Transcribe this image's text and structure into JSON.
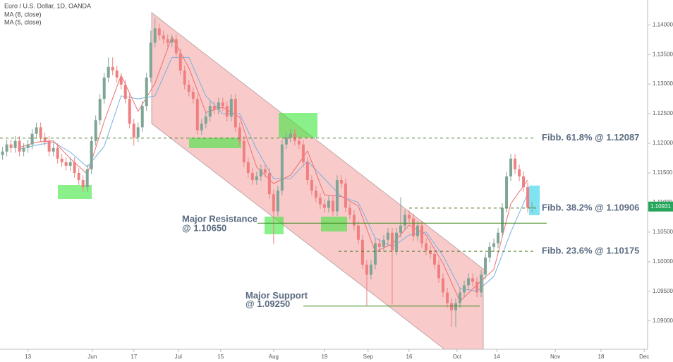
{
  "chart_data": {
    "type": "candlestick",
    "title": "Euro / U.S. Dollar, 1D, OANDA",
    "up_color": "#7fa596",
    "down_color": "#f08080",
    "xlim": [
      -6.6,
      146.3
    ],
    "xticks": [
      {
        "value": 0,
        "label": "13"
      },
      {
        "value": 15.2,
        "label": "Jun"
      },
      {
        "value": 25,
        "label": "17"
      },
      {
        "value": 35.5,
        "label": "Jul"
      },
      {
        "value": 45.5,
        "label": "15"
      },
      {
        "value": 58,
        "label": "Aug"
      },
      {
        "value": 70,
        "label": "19"
      },
      {
        "value": 80.3,
        "label": "Sep"
      },
      {
        "value": 90,
        "label": "16"
      },
      {
        "value": 101.3,
        "label": "Oct"
      },
      {
        "value": 110.7,
        "label": "14"
      },
      {
        "value": 124.5,
        "label": "Nov"
      },
      {
        "value": 135.3,
        "label": "18"
      },
      {
        "value": 145.5,
        "label": "Dec"
      }
    ],
    "ylim": [
      1.0852,
      1.1442
    ],
    "yticks": [
      {
        "value": 1.14,
        "label": "1.14000"
      },
      {
        "value": 1.135,
        "label": "1.13500"
      },
      {
        "value": 1.13,
        "label": "1.13000"
      },
      {
        "value": 1.125,
        "label": "1.12500"
      },
      {
        "value": 1.12,
        "label": "1.12000"
      },
      {
        "value": 1.115,
        "label": "1.11500"
      },
      {
        "value": 1.11,
        "label": "1.11000"
      },
      {
        "value": 1.105,
        "label": "1.10500"
      },
      {
        "value": 1.1,
        "label": "1.10000"
      },
      {
        "value": 1.095,
        "label": "1.09500"
      },
      {
        "value": 1.09,
        "label": "1.09000"
      }
    ],
    "grid": false,
    "last_price": {
      "value": 1.10931,
      "label": "1.10931"
    },
    "x": [
      -6,
      -5,
      -4,
      -3,
      -2,
      -1,
      0,
      1,
      2,
      3,
      4,
      5,
      6,
      7,
      8,
      9,
      10,
      11,
      12,
      13,
      14,
      15,
      16,
      17,
      18,
      19,
      20,
      21,
      22,
      23,
      24,
      25,
      26,
      27,
      28,
      29,
      30,
      31,
      32,
      33,
      34,
      35,
      36,
      37,
      38,
      39,
      40,
      41,
      42,
      43,
      44,
      45,
      46,
      47,
      48,
      49,
      50,
      51,
      52,
      53,
      54,
      55,
      56,
      57,
      58,
      59,
      60,
      61,
      62,
      63,
      64,
      65,
      66,
      67,
      68,
      69,
      70,
      71,
      72,
      73,
      74,
      75,
      76,
      77,
      78,
      79,
      80,
      81,
      82,
      83,
      84,
      85,
      86,
      87,
      88,
      89,
      90,
      91,
      92,
      93,
      94,
      95,
      96,
      97,
      98,
      99,
      100,
      101,
      102,
      103,
      104,
      105,
      106,
      107,
      108,
      109,
      110,
      111,
      112,
      113,
      114,
      115,
      116,
      117,
      118,
      119
    ],
    "open": [
      1.118,
      1.1186,
      1.1198,
      1.1192,
      1.1204,
      1.1186,
      1.1192,
      1.1198,
      1.1216,
      1.1227,
      1.121,
      1.1204,
      1.1186,
      1.1192,
      1.1174,
      1.1168,
      1.1162,
      1.1168,
      1.115,
      1.1138,
      1.1126,
      1.1156,
      1.1204,
      1.1239,
      1.1275,
      1.1311,
      1.1329,
      1.1323,
      1.1311,
      1.1299,
      1.1275,
      1.1233,
      1.121,
      1.1227,
      1.1263,
      1.1311,
      1.137,
      1.1394,
      1.1382,
      1.1376,
      1.137,
      1.1376,
      1.1352,
      1.1323,
      1.1299,
      1.1287,
      1.1275,
      1.1222,
      1.1233,
      1.1245,
      1.1263,
      1.1257,
      1.1269,
      1.1263,
      1.1245,
      1.1275,
      1.1227,
      1.1204,
      1.1168,
      1.115,
      1.1138,
      1.1144,
      1.1156,
      1.115,
      1.1114,
      1.1085,
      1.112,
      1.1198,
      1.121,
      1.1216,
      1.1204,
      1.1198,
      1.1168,
      1.1138,
      1.112,
      1.1108,
      1.1097,
      1.1091,
      1.1103,
      1.1085,
      1.1138,
      1.1132,
      1.1091,
      1.1079,
      1.1061,
      1.1037,
      1.0995,
      1.0978,
      1.0995,
      1.1031,
      1.1025,
      1.1037,
      1.1049,
      1.1019,
      1.1049,
      1.1061,
      1.1079,
      1.1073,
      1.1043,
      1.1061,
      1.1031,
      1.1019,
      1.1013,
      1.0995,
      1.0972,
      1.0948,
      1.093,
      1.0918,
      1.093,
      1.0948,
      1.096,
      1.0972,
      1.0966,
      1.0948,
      1.0978,
      1.1007,
      1.1025,
      1.1031,
      1.1049,
      1.1091,
      1.1144,
      1.1174,
      1.1156,
      1.1144,
      1.1126,
      1.1091
    ],
    "high": [
      1.1194,
      1.1206,
      1.1206,
      1.1212,
      1.1212,
      1.12,
      1.1206,
      1.1224,
      1.1235,
      1.1235,
      1.1218,
      1.1212,
      1.12,
      1.12,
      1.1182,
      1.1176,
      1.1176,
      1.1176,
      1.1158,
      1.1146,
      1.1164,
      1.1212,
      1.1247,
      1.1283,
      1.1319,
      1.1345,
      1.1345,
      1.1331,
      1.1319,
      1.1307,
      1.1283,
      1.1241,
      1.1235,
      1.1271,
      1.1319,
      1.139,
      1.1412,
      1.1402,
      1.139,
      1.1384,
      1.1384,
      1.1384,
      1.136,
      1.1331,
      1.1307,
      1.1295,
      1.1283,
      1.1241,
      1.1253,
      1.1271,
      1.1271,
      1.1277,
      1.1277,
      1.1271,
      1.1283,
      1.1283,
      1.1235,
      1.1212,
      1.1176,
      1.1158,
      1.1152,
      1.1164,
      1.1164,
      1.1158,
      1.1122,
      1.1128,
      1.1206,
      1.1218,
      1.1224,
      1.1224,
      1.1212,
      1.1206,
      1.1176,
      1.1146,
      1.1128,
      1.1116,
      1.1105,
      1.1111,
      1.1111,
      1.1146,
      1.1146,
      1.114,
      1.1099,
      1.1087,
      1.1069,
      1.1045,
      1.1003,
      1.1003,
      1.1039,
      1.1039,
      1.1045,
      1.1057,
      1.1057,
      1.1057,
      1.1109,
      1.1087,
      1.1087,
      1.1081,
      1.1069,
      1.1069,
      1.1039,
      1.1027,
      1.1021,
      1.1003,
      1.098,
      1.0956,
      1.0938,
      1.0938,
      1.0956,
      1.0968,
      1.098,
      1.098,
      1.0974,
      1.0986,
      1.1015,
      1.1033,
      1.1039,
      1.1057,
      1.1099,
      1.1152,
      1.1182,
      1.1182,
      1.1164,
      1.1152,
      1.1134,
      1.1101
    ],
    "low": [
      1.1172,
      1.1178,
      1.1184,
      1.1184,
      1.1178,
      1.1178,
      1.1184,
      1.119,
      1.1208,
      1.1202,
      1.1196,
      1.1178,
      1.1178,
      1.1166,
      1.116,
      1.1154,
      1.1154,
      1.1142,
      1.113,
      1.1118,
      1.1118,
      1.1148,
      1.1196,
      1.1231,
      1.1267,
      1.1303,
      1.1315,
      1.1303,
      1.1291,
      1.1267,
      1.1225,
      1.1196,
      1.1202,
      1.1219,
      1.1255,
      1.1303,
      1.1362,
      1.1374,
      1.1368,
      1.1362,
      1.1362,
      1.1344,
      1.1315,
      1.1291,
      1.1279,
      1.1267,
      1.1214,
      1.1214,
      1.1225,
      1.1237,
      1.1249,
      1.1249,
      1.1255,
      1.1237,
      1.1237,
      1.1219,
      1.1196,
      1.116,
      1.1142,
      1.113,
      1.113,
      1.1136,
      1.1142,
      1.1106,
      1.103,
      1.1077,
      1.1112,
      1.119,
      1.1202,
      1.1196,
      1.119,
      1.116,
      1.113,
      1.1112,
      1.11,
      1.1089,
      1.1083,
      1.1083,
      1.1077,
      1.1077,
      1.1124,
      1.1083,
      1.1071,
      1.1053,
      1.1029,
      1.0987,
      1.0926,
      1.097,
      1.0987,
      1.1017,
      1.1017,
      1.1029,
      1.0928,
      1.1011,
      1.1041,
      1.1053,
      1.1065,
      1.1035,
      1.1035,
      1.1023,
      1.1011,
      1.1005,
      1.0987,
      1.0964,
      1.094,
      1.0922,
      1.089,
      1.089,
      1.0922,
      1.094,
      1.0952,
      1.0958,
      1.094,
      1.094,
      1.097,
      1.0999,
      1.1017,
      1.1023,
      1.1041,
      1.1083,
      1.1136,
      1.1148,
      1.1136,
      1.1118,
      1.1083,
      1.1083
    ],
    "close": [
      1.1186,
      1.1198,
      1.1192,
      1.1204,
      1.1186,
      1.1192,
      1.1198,
      1.1216,
      1.1227,
      1.121,
      1.1204,
      1.1186,
      1.1192,
      1.1174,
      1.1168,
      1.1162,
      1.1168,
      1.115,
      1.1138,
      1.1126,
      1.1156,
      1.1204,
      1.1239,
      1.1275,
      1.1311,
      1.1329,
      1.1323,
      1.1311,
      1.1299,
      1.1275,
      1.1233,
      1.121,
      1.1227,
      1.1263,
      1.1311,
      1.137,
      1.1394,
      1.1382,
      1.1376,
      1.137,
      1.1376,
      1.1352,
      1.1323,
      1.1299,
      1.1287,
      1.1275,
      1.1222,
      1.1233,
      1.1245,
      1.1263,
      1.1257,
      1.1269,
      1.1263,
      1.1245,
      1.1275,
      1.1227,
      1.1204,
      1.1168,
      1.115,
      1.1138,
      1.1144,
      1.1156,
      1.115,
      1.1114,
      1.1085,
      1.112,
      1.1198,
      1.121,
      1.1216,
      1.1204,
      1.1198,
      1.1168,
      1.1138,
      1.112,
      1.1108,
      1.1097,
      1.1091,
      1.1103,
      1.1085,
      1.1138,
      1.1132,
      1.1091,
      1.1079,
      1.1061,
      1.1037,
      1.0995,
      1.0978,
      1.0995,
      1.1031,
      1.1025,
      1.1037,
      1.1049,
      1.1019,
      1.1049,
      1.1061,
      1.1079,
      1.1073,
      1.1043,
      1.1061,
      1.1031,
      1.1019,
      1.1013,
      1.0995,
      1.0972,
      1.0948,
      1.093,
      1.0918,
      1.093,
      1.0948,
      1.096,
      1.0972,
      1.0966,
      1.0948,
      1.0978,
      1.1007,
      1.1025,
      1.1031,
      1.1049,
      1.1091,
      1.1144,
      1.1174,
      1.1156,
      1.1144,
      1.1126,
      1.1091,
      1.1093
    ],
    "moving_averages": [
      {
        "name": "MA (8, close)",
        "color": "#7ab0e0",
        "x": [
          -2,
          2,
          6,
          10,
          14,
          18,
          22,
          26,
          30,
          34,
          38,
          42,
          46,
          50,
          54,
          58,
          62,
          66,
          70,
          74,
          78,
          82,
          86,
          90,
          94,
          98,
          102,
          106,
          110,
          114,
          118
        ],
        "values": [
          1.119,
          1.1197,
          1.1202,
          1.1185,
          1.116,
          1.1195,
          1.128,
          1.1275,
          1.128,
          1.1345,
          1.1345,
          1.128,
          1.125,
          1.125,
          1.119,
          1.114,
          1.114,
          1.117,
          1.114,
          1.111,
          1.11,
          1.104,
          1.1025,
          1.1045,
          1.105,
          1.101,
          1.0955,
          1.095,
          1.0975,
          1.105,
          1.1115
        ]
      },
      {
        "name": "MA (5, close)",
        "color": "#ec6f6f",
        "x": [
          -2,
          2,
          6,
          10,
          14,
          18,
          22,
          26,
          30,
          34,
          38,
          42,
          46,
          50,
          54,
          58,
          62,
          66,
          70,
          74,
          78,
          82,
          86,
          90,
          94,
          98,
          102,
          106,
          110,
          114,
          118
        ],
        "values": [
          1.1193,
          1.1202,
          1.1204,
          1.1174,
          1.1148,
          1.1237,
          1.1315,
          1.1254,
          1.1301,
          1.138,
          1.1327,
          1.1252,
          1.1261,
          1.1244,
          1.116,
          1.1132,
          1.1146,
          1.1187,
          1.1113,
          1.111,
          1.1094,
          1.1017,
          1.103,
          1.1062,
          1.1045,
          1.0997,
          1.0933,
          1.0961,
          1.0987,
          1.1098,
          1.1138
        ]
      }
    ],
    "levels": [
      {
        "label": [
          "Fibb. 61.8% @ 1.12087"
        ],
        "value": 1.12087,
        "style": "dashed"
      },
      {
        "label": [
          "Fibb. 38.2% @ 1.10906"
        ],
        "value": 1.10906,
        "style": "dashed"
      },
      {
        "label": [
          "Fibb. 23.6% @ 1.10175"
        ],
        "value": 1.10175,
        "style": "dashed"
      },
      {
        "label": [
          "Major Resistance",
          "@ 1.10650"
        ],
        "value": 1.1065,
        "style": "solid"
      },
      {
        "label": [
          "Major Support",
          "@ 1.09250"
        ],
        "value": 1.0925,
        "style": "solid"
      }
    ]
  }
}
